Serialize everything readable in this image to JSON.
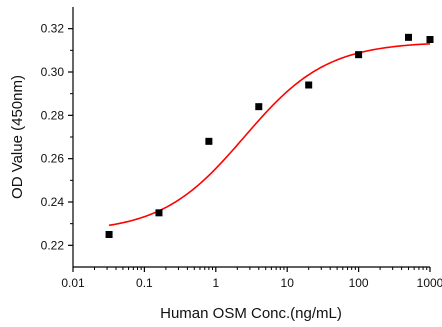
{
  "chart_data": {
    "type": "scatter",
    "xlabel": "Human OSM Conc.(ng/mL)",
    "ylabel": "OD Value (450nm)",
    "x_scale": "log",
    "xlim": [
      0.01,
      1000
    ],
    "ylim": [
      0.21,
      0.33
    ],
    "x_ticks": [
      0.01,
      0.1,
      1,
      10,
      100,
      1000
    ],
    "x_tick_labels": [
      "0.01",
      "0.1",
      "1",
      "10",
      "100",
      "1000"
    ],
    "y_ticks": [
      0.22,
      0.24,
      0.26,
      0.28,
      0.3,
      0.32
    ],
    "y_tick_labels": [
      "0.22",
      "0.24",
      "0.26",
      "0.28",
      "0.30",
      "0.32"
    ],
    "grid": false,
    "points": {
      "x": [
        0.032,
        0.16,
        0.8,
        4,
        20,
        100,
        500,
        1000
      ],
      "y": [
        0.225,
        0.235,
        0.268,
        0.284,
        0.294,
        0.308,
        0.316,
        0.315
      ],
      "color": "#000000",
      "marker": "square"
    },
    "fit_curve": {
      "model": "4PL",
      "bottom": 0.226,
      "top": 0.314,
      "ec50": 2.5,
      "hill": 0.75,
      "x_range": [
        0.032,
        1000
      ],
      "color": "#ff0000"
    }
  }
}
